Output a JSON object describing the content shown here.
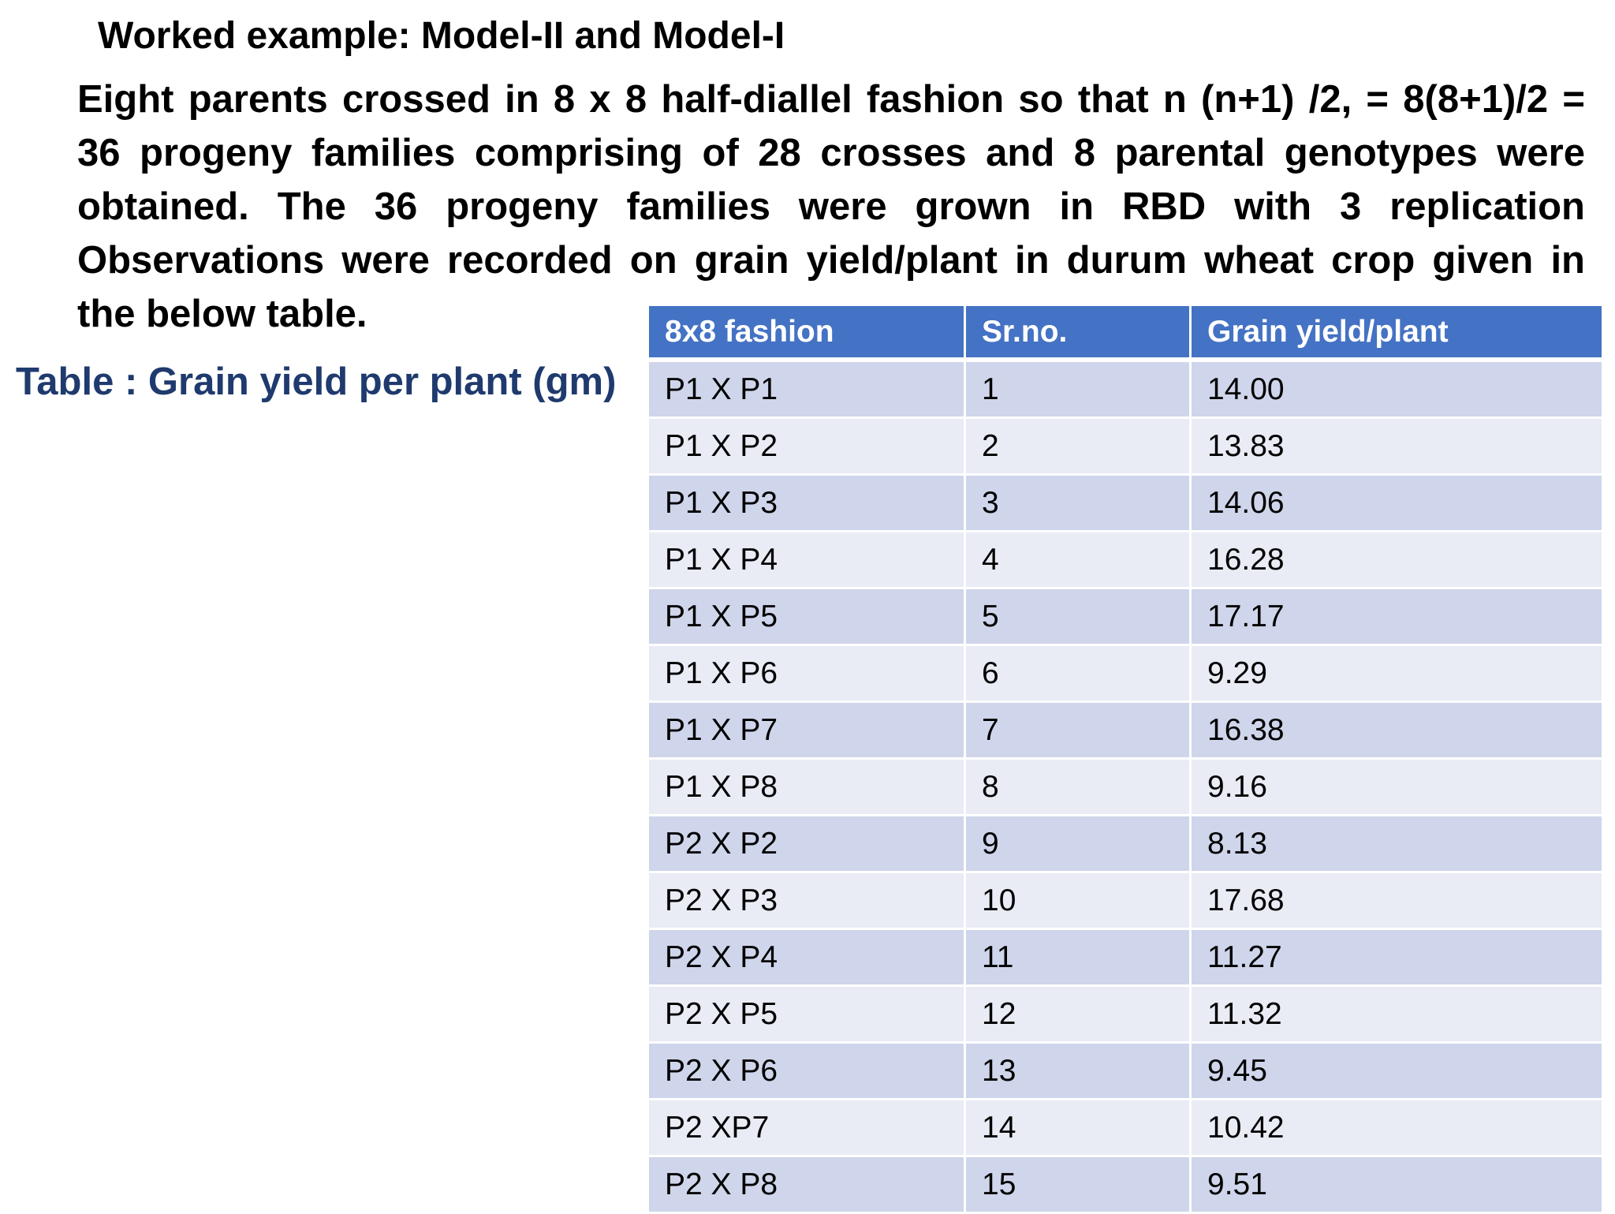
{
  "heading": "Worked example: Model-II and Model-I",
  "intro_lines": [
    "Eight parents crossed  in 8 x 8 half-diallel fashion so that n (n+1) /2, = 8(8+1)/2 =",
    "36 progeny families comprising of 28 crosses and 8 parental genotypes were",
    "obtained. The 36 progeny families were grown in RBD with 3 replication",
    "Observations were recorded on grain yield/plant in durum wheat crop given in",
    "the below table."
  ],
  "table_caption": "Table : Grain yield per plant (gm)",
  "table": {
    "headers": [
      "8x8 fashion",
      "Sr.no.",
      "Grain yield/plant"
    ],
    "rows": [
      [
        "P1 X P1",
        "1",
        "14.00"
      ],
      [
        "P1 X P2",
        "2",
        "13.83"
      ],
      [
        "P1 X P3",
        "3",
        "14.06"
      ],
      [
        "P1 X P4",
        "4",
        "16.28"
      ],
      [
        "P1 X P5",
        "5",
        "17.17"
      ],
      [
        "P1 X P6",
        "6",
        "9.29"
      ],
      [
        "P1 X P7",
        "7",
        "16.38"
      ],
      [
        "P1 X P8",
        "8",
        "9.16"
      ],
      [
        "P2 X P2",
        "9",
        "8.13"
      ],
      [
        "P2 X P3",
        "10",
        "17.68"
      ],
      [
        "P2 X P4",
        "11",
        "11.27"
      ],
      [
        "P2 X P5",
        "12",
        "11.32"
      ],
      [
        "P2 X P6",
        "13",
        "9.45"
      ],
      [
        "P2 XP7",
        "14",
        "10.42"
      ],
      [
        "P2 X P8",
        "15",
        "9.51"
      ]
    ]
  },
  "colors": {
    "header_bg": "#4472c4",
    "row_odd_bg": "#cfd5ea",
    "row_even_bg": "#e9ebf5",
    "caption": "#1f3a6e"
  }
}
